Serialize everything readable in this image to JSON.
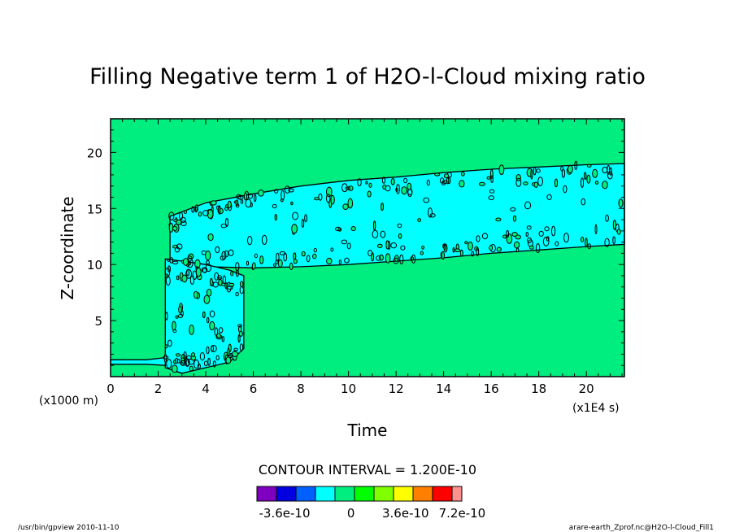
{
  "chart_data": {
    "type": "heatmap",
    "title": "Filling Negative term 1 of H2O-l-Cloud mixing ratio",
    "xlabel": "Time",
    "ylabel": "Z-coordinate",
    "x_unit": "(x1E4 s)",
    "y_unit": "(x1000 m)",
    "xlim": [
      0,
      21.6
    ],
    "ylim": [
      0,
      23
    ],
    "x_ticks": [
      "0",
      "2",
      "4",
      "6",
      "8",
      "10",
      "12",
      "14",
      "16",
      "18",
      "20"
    ],
    "y_ticks": [
      "5",
      "10",
      "15",
      "20"
    ],
    "background_color": "#00ee80",
    "regions": [
      {
        "name": "upper cloud band",
        "color": "#00ffff",
        "upper": [
          [
            2.5,
            14.3
          ],
          [
            4,
            15.5
          ],
          [
            6,
            16.3
          ],
          [
            8,
            17.0
          ],
          [
            10,
            17.5
          ],
          [
            12,
            17.8
          ],
          [
            14,
            18.2
          ],
          [
            16,
            18.5
          ],
          [
            18,
            18.7
          ],
          [
            20,
            18.9
          ],
          [
            21.6,
            19.0
          ]
        ],
        "lower": [
          [
            2.5,
            10.2
          ],
          [
            4,
            9.8
          ],
          [
            6,
            9.7
          ],
          [
            8,
            9.8
          ],
          [
            10,
            10.0
          ],
          [
            12,
            10.3
          ],
          [
            14,
            10.6
          ],
          [
            16,
            11.0
          ],
          [
            18,
            11.3
          ],
          [
            20,
            11.6
          ],
          [
            21.6,
            11.8
          ]
        ]
      },
      {
        "name": "lower convective column",
        "color": "#00ffff",
        "upper": [
          [
            2.3,
            10.5
          ],
          [
            3,
            10.3
          ],
          [
            4,
            10.0
          ],
          [
            5,
            9.5
          ],
          [
            5.6,
            9.0
          ]
        ],
        "lower": [
          [
            2.3,
            0.8
          ],
          [
            3,
            0.3
          ],
          [
            4,
            0.8
          ],
          [
            5,
            1.3
          ],
          [
            5.6,
            2.5
          ]
        ]
      },
      {
        "name": "surface strip",
        "color": "#00ffff",
        "upper": [
          [
            0,
            1.5
          ],
          [
            1.5,
            1.5
          ],
          [
            2.3,
            1.7
          ]
        ],
        "lower": [
          [
            0,
            1.1
          ],
          [
            1.5,
            1.1
          ],
          [
            2.3,
            1.0
          ]
        ]
      }
    ],
    "contour_interval": "CONTOUR INTERVAL = 1.200E-10",
    "colorbar": {
      "colors": [
        "#8000c0",
        "#0000e0",
        "#0060ff",
        "#00ffff",
        "#00ee80",
        "#00ff00",
        "#80ff00",
        "#ffff00",
        "#ff8000",
        "#ff0000",
        "#ff9090"
      ],
      "labels": [
        "-3.6e-10",
        "0",
        "3.6e-10",
        "7.2e-10"
      ],
      "label_positions": [
        0.5,
        1.5,
        2.5,
        3.5
      ]
    },
    "grid": false,
    "legend": "bottom-center"
  },
  "footer": {
    "left": "/usr/bin/gpview   2010-11-10",
    "right": "arare-earth_Zprof.nc@H2O-l-Cloud_Fill1"
  }
}
